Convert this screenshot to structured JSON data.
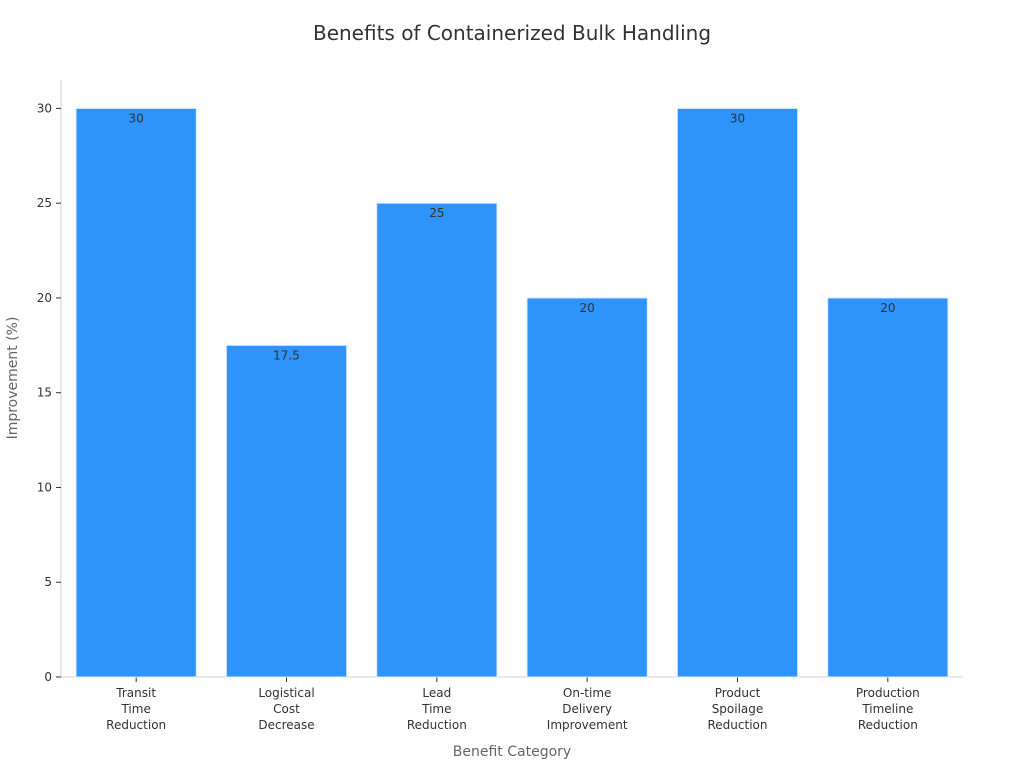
{
  "chart_data": {
    "type": "bar",
    "title": "Benefits of Containerized Bulk Handling",
    "xlabel": "Benefit Category",
    "ylabel": "Improvement (%)",
    "categories": [
      [
        "Transit",
        "Time",
        "Reduction"
      ],
      [
        "Logistical",
        "Cost",
        "Decrease"
      ],
      [
        "Lead",
        "Time",
        "Reduction"
      ],
      [
        "On-time",
        "Delivery",
        "Improvement"
      ],
      [
        "Product",
        "Spoilage",
        "Reduction"
      ],
      [
        "Production",
        "Timeline",
        "Reduction"
      ]
    ],
    "values": [
      30,
      17.5,
      25,
      20,
      30,
      20
    ],
    "value_labels": [
      "30",
      "17.5",
      "25",
      "20",
      "30",
      "20"
    ],
    "yticks": [
      0,
      5,
      10,
      15,
      20,
      25,
      30
    ],
    "ylim": [
      0,
      31.5
    ],
    "grid": false,
    "bar_color": "#2e93fa"
  }
}
